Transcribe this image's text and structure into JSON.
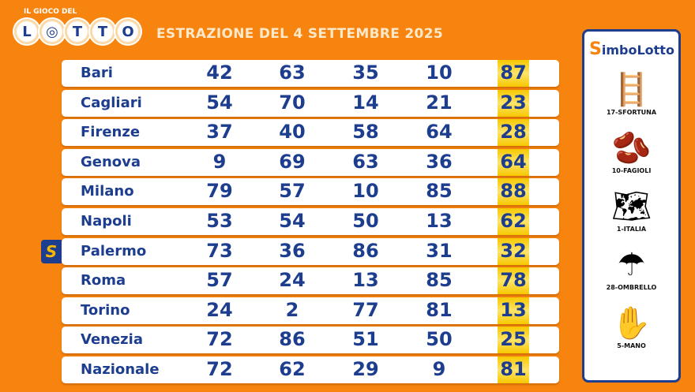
{
  "header": {
    "logo_small": "IL GIOCO DEL",
    "logo_letters": [
      "L",
      "◎",
      "T",
      "T",
      "O"
    ],
    "title": "ESTRAZIONE DEL 4 SETTEMBRE 2025"
  },
  "rows": [
    {
      "city": "Bari",
      "n": [
        "42",
        "63",
        "35",
        "10",
        "87"
      ]
    },
    {
      "city": "Cagliari",
      "n": [
        "54",
        "70",
        "14",
        "21",
        "23"
      ]
    },
    {
      "city": "Firenze",
      "n": [
        "37",
        "40",
        "58",
        "64",
        "28"
      ]
    },
    {
      "city": "Genova",
      "n": [
        "9",
        "69",
        "63",
        "36",
        "64"
      ]
    },
    {
      "city": "Milano",
      "n": [
        "79",
        "57",
        "10",
        "85",
        "88"
      ]
    },
    {
      "city": "Napoli",
      "n": [
        "53",
        "54",
        "50",
        "13",
        "62"
      ]
    },
    {
      "city": "Palermo",
      "n": [
        "73",
        "36",
        "86",
        "31",
        "32"
      ]
    },
    {
      "city": "Roma",
      "n": [
        "57",
        "24",
        "13",
        "85",
        "78"
      ]
    },
    {
      "city": "Torino",
      "n": [
        "24",
        "2",
        "77",
        "81",
        "13"
      ]
    },
    {
      "city": "Venezia",
      "n": [
        "72",
        "86",
        "51",
        "50",
        "25"
      ]
    },
    {
      "city": "Nazionale",
      "n": [
        "72",
        "62",
        "29",
        "9",
        "81"
      ]
    }
  ],
  "badge": "S",
  "simbolotto": {
    "brand_s": "S",
    "brand_rest": "imboLotto",
    "symbols": [
      {
        "icon": "🪜",
        "label": "17-SFORTUNA"
      },
      {
        "icon": "🫘",
        "label": "10-FAGIOLI"
      },
      {
        "icon": "🗺",
        "label": "1-ITALIA"
      },
      {
        "icon": "☂",
        "label": "28-OMBRELLO"
      },
      {
        "icon": "✋",
        "label": "5-MANO"
      }
    ]
  }
}
